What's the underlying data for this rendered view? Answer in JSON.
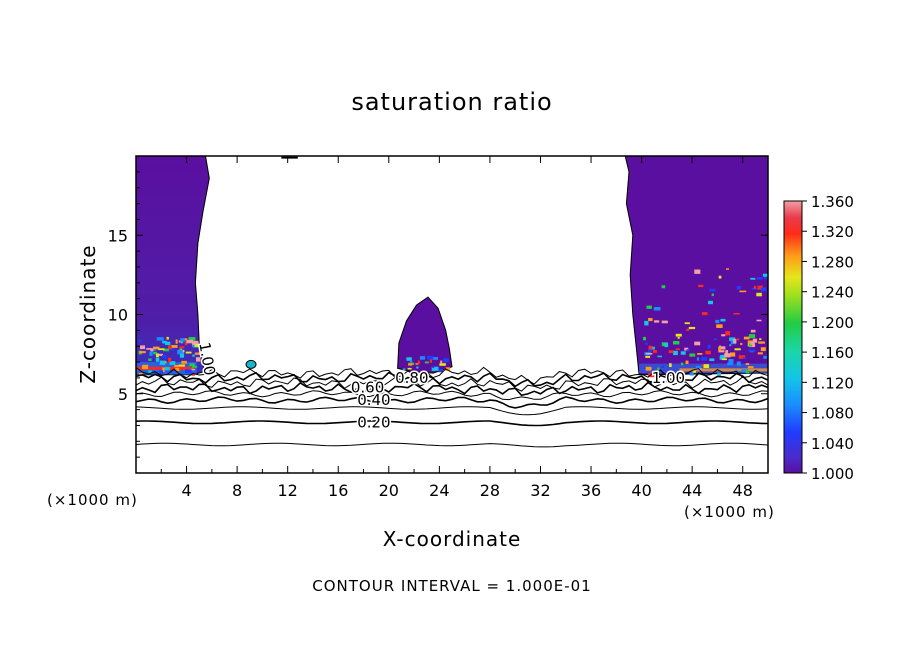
{
  "chart_data": {
    "type": "contour",
    "title": "saturation ratio",
    "xlabel": "X-coordinate",
    "ylabel": "Z-coordinate",
    "x_unit": "(×1000 m)",
    "footer": "CONTOUR INTERVAL = 1.000E-01",
    "xlim": [
      0,
      50
    ],
    "ylim": [
      0,
      20
    ],
    "x_ticks": [
      4,
      8,
      12,
      16,
      20,
      24,
      28,
      32,
      36,
      40,
      44,
      48
    ],
    "y_ticks": [
      5,
      10,
      15
    ],
    "contour_interval": 0.1,
    "contour_labels": [
      {
        "text": "0.20",
        "x": 17.5,
        "z": 3.2
      },
      {
        "text": "0.40",
        "x": 17.5,
        "z": 4.6
      },
      {
        "text": "0.60",
        "x": 17.0,
        "z": 5.4
      },
      {
        "text": "0.80",
        "x": 20.5,
        "z": 6.0
      },
      {
        "text": "1.00",
        "x": 40.8,
        "z": 6.0
      },
      {
        "text": "1.00",
        "x": 5.0,
        "z": 8.5
      }
    ],
    "colorbar": {
      "min": 1.0,
      "max": 1.36,
      "labels": [
        "1.360",
        "1.320",
        "1.280",
        "1.240",
        "1.200",
        "1.160",
        "1.120",
        "1.080",
        "1.040",
        "1.000"
      ]
    },
    "supersaturated_regions": [
      {
        "name": "left column",
        "x_range": [
          0,
          5.5
        ],
        "z_range": [
          6.2,
          20
        ]
      },
      {
        "name": "central dome",
        "x_range": [
          20.5,
          25
        ],
        "z_range": [
          6.5,
          11
        ]
      },
      {
        "name": "small cell",
        "x_range": [
          8.7,
          9.5
        ],
        "z_range": [
          6.6,
          7.1
        ]
      },
      {
        "name": "right column",
        "x_range": [
          39,
          50
        ],
        "z_range": [
          6.2,
          20
        ]
      }
    ],
    "colors": {
      "supersaturation_base": "#5a0fa0",
      "line": "#000000",
      "background": "#ffffff"
    }
  }
}
